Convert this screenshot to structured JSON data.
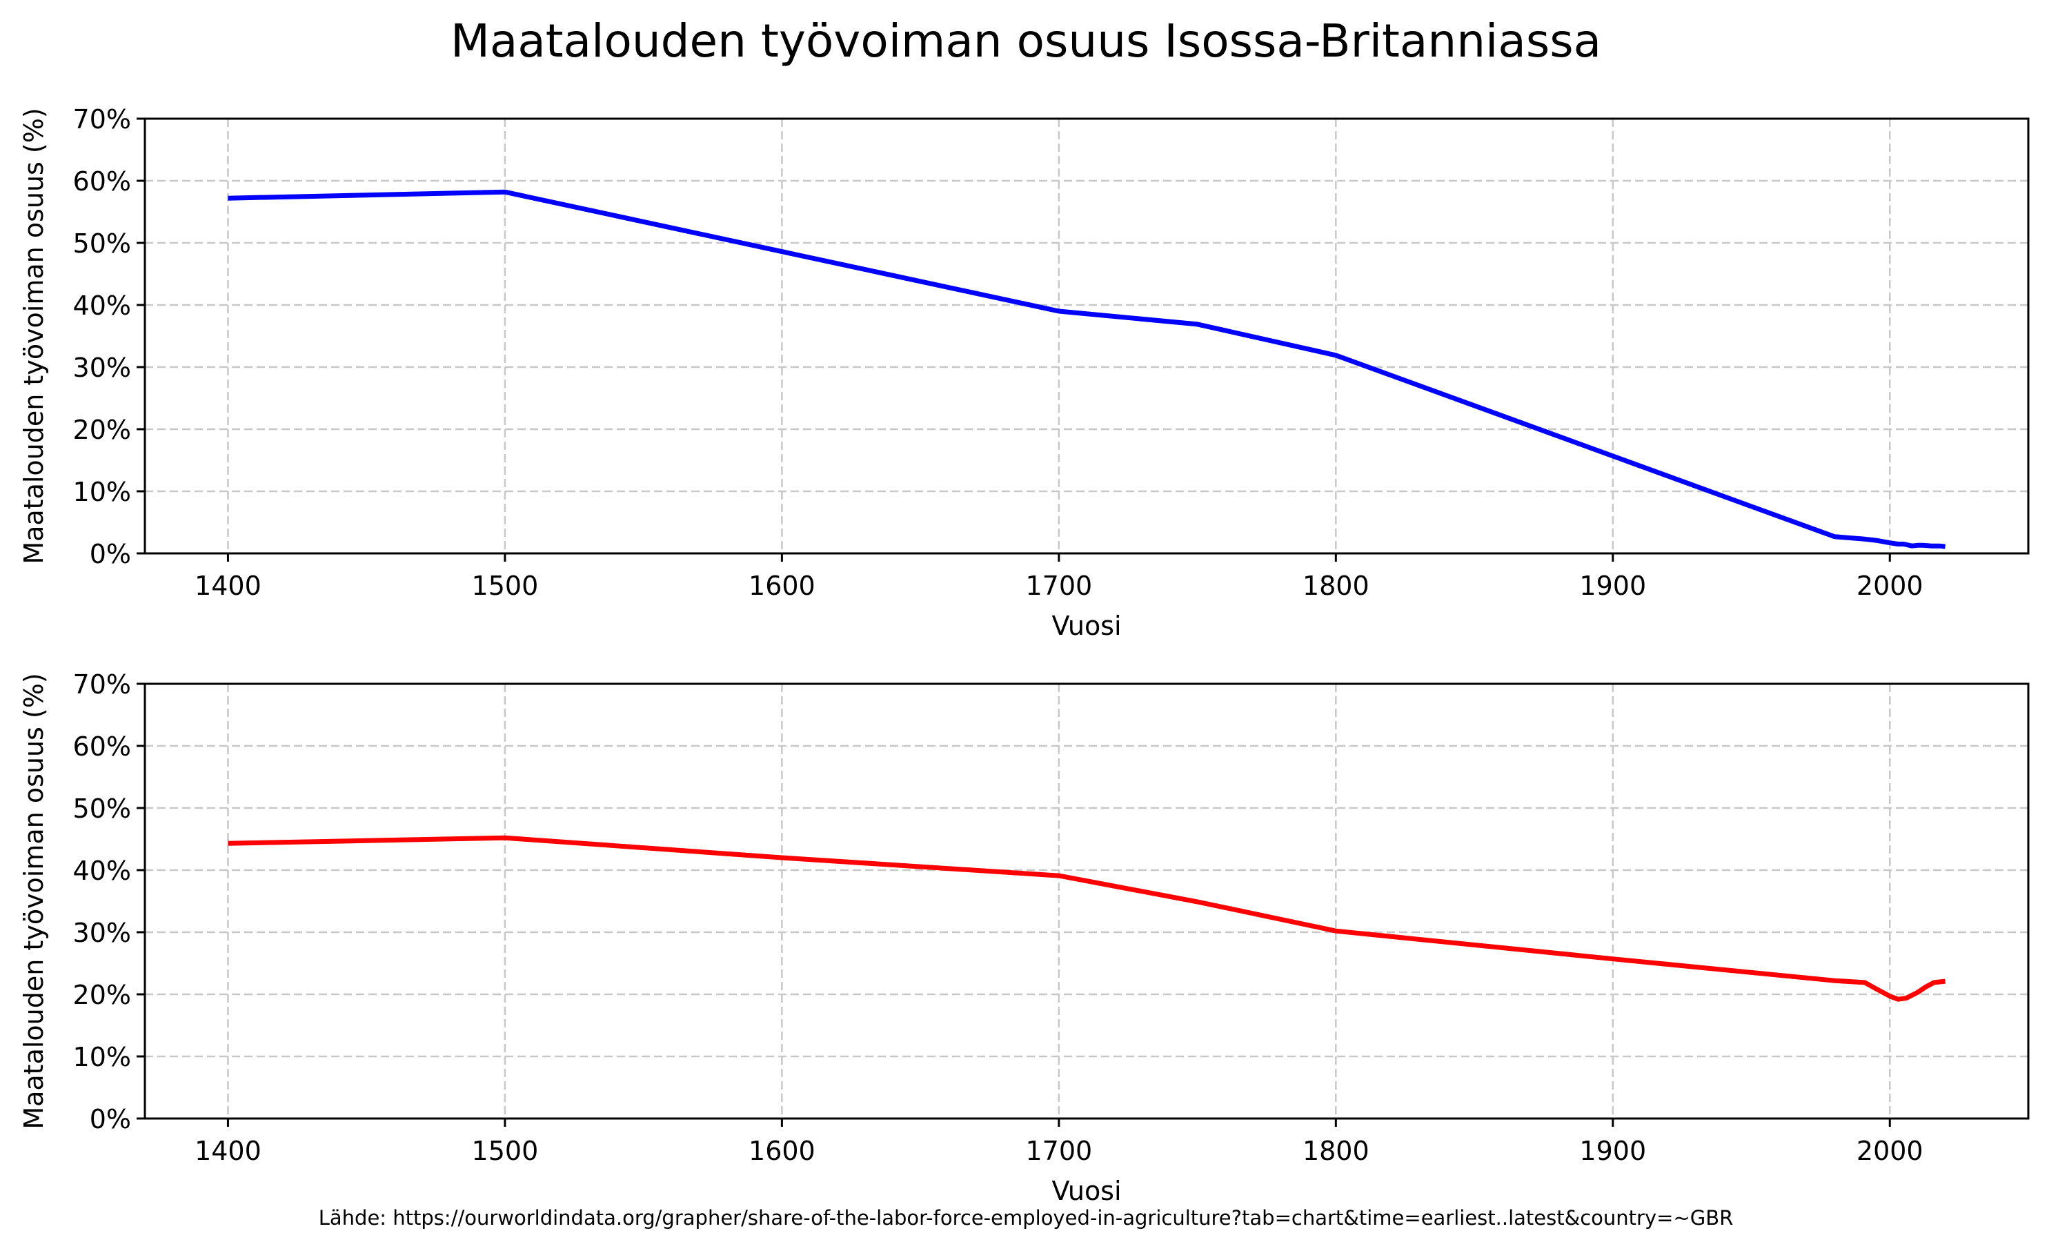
{
  "figure": {
    "title": "Maatalouden työvoiman osuus Isossa-Britanniassa",
    "source_note": "Lähde: https://ourworldindata.org/grapher/share-of-the-labor-force-employed-in-agriculture?tab=chart&time=earliest..latest&country=~GBR"
  },
  "chart_data": [
    {
      "type": "line",
      "title": "",
      "xlabel": "Vuosi",
      "ylabel": "Maatalouden työvoiman osuus (%)",
      "xlim": [
        1370,
        2050
      ],
      "ylim": [
        0,
        70
      ],
      "xticks": [
        1400,
        1500,
        1600,
        1700,
        1800,
        1900,
        2000
      ],
      "xtick_labels": [
        "1400",
        "1500",
        "1600",
        "1700",
        "1800",
        "1900",
        "2000"
      ],
      "yticks": [
        0,
        10,
        20,
        30,
        40,
        50,
        60,
        70
      ],
      "ytick_labels": [
        "0%",
        "10%",
        "20%",
        "30%",
        "40%",
        "50%",
        "60%",
        "70%"
      ],
      "grid": true,
      "legend": null,
      "series": [
        {
          "name": "Maatalouden työvoiman osuus",
          "color": "#0000ff",
          "x": [
            1400,
            1500,
            1700,
            1750,
            1800,
            1980,
            1991,
            1995,
            2000,
            2003,
            2005,
            2008,
            2010,
            2012,
            2015,
            2018,
            2020
          ],
          "y": [
            57.2,
            58.2,
            39.0,
            36.9,
            31.9,
            2.7,
            2.3,
            2.1,
            1.7,
            1.5,
            1.5,
            1.2,
            1.3,
            1.3,
            1.2,
            1.2,
            1.1
          ]
        }
      ]
    },
    {
      "type": "line",
      "title": "",
      "xlabel": "Vuosi",
      "ylabel": "Maatalouden työvoiman osuus (%)",
      "xlim": [
        1370,
        2050
      ],
      "ylim": [
        0,
        70
      ],
      "xticks": [
        1400,
        1500,
        1600,
        1700,
        1800,
        1900,
        2000
      ],
      "xtick_labels": [
        "1400",
        "1500",
        "1600",
        "1700",
        "1800",
        "1900",
        "2000"
      ],
      "yticks": [
        0,
        10,
        20,
        30,
        40,
        50,
        60,
        70
      ],
      "ytick_labels": [
        "0%",
        "10%",
        "20%",
        "30%",
        "40%",
        "50%",
        "60%",
        "70%"
      ],
      "grid": true,
      "legend": null,
      "series": [
        {
          "name": "Maatalouden työvoiman osuus",
          "color": "#ff0000",
          "x": [
            1400,
            1500,
            1600,
            1700,
            1750,
            1800,
            1900,
            1980,
            1991,
            1995,
            2000,
            2003,
            2006,
            2010,
            2013,
            2016,
            2020
          ],
          "y": [
            44.3,
            45.2,
            42.0,
            39.1,
            34.9,
            30.2,
            25.7,
            22.2,
            21.9,
            20.9,
            19.7,
            19.2,
            19.4,
            20.3,
            21.2,
            21.9,
            22.1
          ]
        }
      ]
    }
  ]
}
